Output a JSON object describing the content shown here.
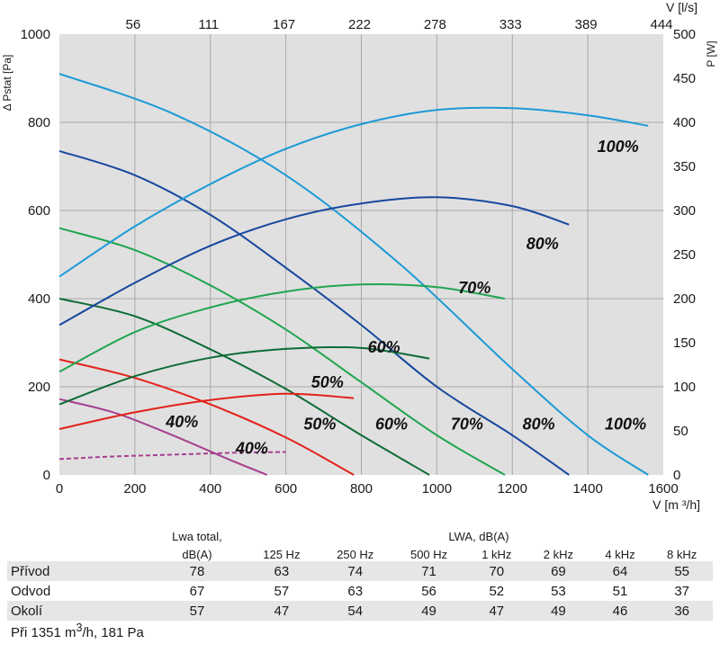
{
  "chart_data": {
    "type": "line",
    "xlabel": "V [m ³/h]",
    "ylabel_left": "Δ Pstat [Pa]",
    "ylabel_right": "P [W]",
    "xlabel_top": "V [l/s]",
    "xlim": [
      0,
      1600
    ],
    "ylim_left": [
      0,
      1000
    ],
    "ylim_right": [
      0,
      500
    ],
    "x_ticks": [
      "0",
      "200",
      "400",
      "600",
      "800",
      "1000",
      "1200",
      "1400",
      "1600"
    ],
    "y_ticks_left": [
      "0",
      "200",
      "400",
      "600",
      "800",
      "1000"
    ],
    "y_ticks_right": [
      "0",
      "50",
      "100",
      "150",
      "200",
      "250",
      "300",
      "350",
      "400",
      "450",
      "500"
    ],
    "top_ticks": [
      {
        "label": "56",
        "m3h": 200
      },
      {
        "label": "111",
        "m3h": 400
      },
      {
        "label": "167",
        "m3h": 600
      },
      {
        "label": "222",
        "m3h": 800
      },
      {
        "label": "278",
        "m3h": 1000
      },
      {
        "label": "333",
        "m3h": 1200
      },
      {
        "label": "389",
        "m3h": 1400
      },
      {
        "label": "444",
        "m3h": 1600
      }
    ],
    "grid": true,
    "pressure_series": [
      {
        "name": "100%",
        "color": "#1b9ad6",
        "x": [
          0,
          300,
          600,
          900,
          1200,
          1400,
          1560
        ],
        "y": [
          910,
          820,
          680,
          480,
          240,
          90,
          0
        ]
      },
      {
        "name": "80%",
        "color": "#17479e",
        "x": [
          0,
          200,
          400,
          600,
          800,
          1000,
          1200,
          1350
        ],
        "y": [
          735,
          680,
          590,
          470,
          340,
          200,
          90,
          0
        ]
      },
      {
        "name": "70%",
        "color": "#1fa54e",
        "x": [
          0,
          200,
          400,
          600,
          800,
          1000,
          1180
        ],
        "y": [
          560,
          510,
          430,
          330,
          210,
          90,
          0
        ]
      },
      {
        "name": "60%",
        "color": "#0d6b35",
        "x": [
          0,
          200,
          400,
          600,
          800,
          980
        ],
        "y": [
          400,
          360,
          285,
          195,
          90,
          0
        ]
      },
      {
        "name": "50%",
        "color": "#e32119",
        "x": [
          0,
          200,
          400,
          600,
          780
        ],
        "y": [
          262,
          220,
          160,
          85,
          0
        ]
      },
      {
        "name": "40%",
        "color": "#a63f8f",
        "x": [
          0,
          150,
          300,
          450,
          550
        ],
        "y": [
          172,
          140,
          90,
          35,
          0
        ]
      }
    ],
    "power_series": [
      {
        "name": "100%",
        "color": "#1b9ad6",
        "x": [
          0,
          200,
          400,
          600,
          800,
          1000,
          1200,
          1400,
          1560
        ],
        "y": [
          225,
          282,
          330,
          370,
          398,
          414,
          416,
          408,
          396
        ]
      },
      {
        "name": "80%",
        "color": "#17479e",
        "x": [
          0,
          200,
          400,
          600,
          800,
          1000,
          1200,
          1350
        ],
        "y": [
          170,
          218,
          260,
          290,
          308,
          315,
          305,
          284
        ]
      },
      {
        "name": "70%",
        "color": "#1fa54e",
        "x": [
          0,
          200,
          400,
          600,
          800,
          1000,
          1180
        ],
        "y": [
          117,
          162,
          190,
          208,
          216,
          213,
          200
        ]
      },
      {
        "name": "60%",
        "color": "#0d6b35",
        "x": [
          0,
          200,
          400,
          600,
          800,
          980
        ],
        "y": [
          80,
          112,
          133,
          143,
          144,
          132
        ]
      },
      {
        "name": "50%",
        "color": "#e32119",
        "x": [
          0,
          200,
          400,
          600,
          780
        ],
        "y": [
          52,
          71,
          85,
          92,
          87
        ]
      },
      {
        "name": "40%",
        "color": "#a63f8f",
        "x": [
          0,
          150,
          300,
          450,
          600
        ],
        "y": [
          18,
          21,
          23,
          25,
          26
        ],
        "dashed": true
      }
    ],
    "curve_labels": [
      {
        "text": "100%",
        "x": 1480,
        "y": 745
      },
      {
        "text": "80%",
        "x": 1280,
        "y": 525
      },
      {
        "text": "70%",
        "x": 1100,
        "y": 425
      },
      {
        "text": "60%",
        "x": 860,
        "y": 290
      },
      {
        "text": "50%",
        "x": 710,
        "y": 210
      },
      {
        "text": "40%",
        "x": 325,
        "y": 120
      },
      {
        "text": "40%",
        "x": 510,
        "y": 60
      },
      {
        "text": "50%",
        "x": 690,
        "y": 115
      },
      {
        "text": "60%",
        "x": 880,
        "y": 115
      },
      {
        "text": "70%",
        "x": 1080,
        "y": 115
      },
      {
        "text": "80%",
        "x": 1270,
        "y": 115
      },
      {
        "text": "100%",
        "x": 1500,
        "y": 115
      }
    ]
  },
  "table": {
    "header_total_1": "Lwa total,",
    "header_total_2": "dB(A)",
    "header_group": "LWA, dB(A)",
    "bands": [
      "125 Hz",
      "250 Hz",
      "500 Hz",
      "1 kHz",
      "2 kHz",
      "4 kHz",
      "8 kHz"
    ],
    "rows": [
      {
        "name": "Přívod",
        "total": "78",
        "values": [
          "63",
          "74",
          "71",
          "70",
          "69",
          "64",
          "55"
        ]
      },
      {
        "name": "Odvod",
        "total": "67",
        "values": [
          "57",
          "63",
          "56",
          "52",
          "53",
          "51",
          "37"
        ]
      },
      {
        "name": "Okolí",
        "total": "57",
        "values": [
          "47",
          "54",
          "49",
          "47",
          "49",
          "46",
          "36"
        ]
      }
    ],
    "note_prefix": "Při 1351 m",
    "note_sup": "3",
    "note_suffix": "/h, 181 Pa"
  }
}
